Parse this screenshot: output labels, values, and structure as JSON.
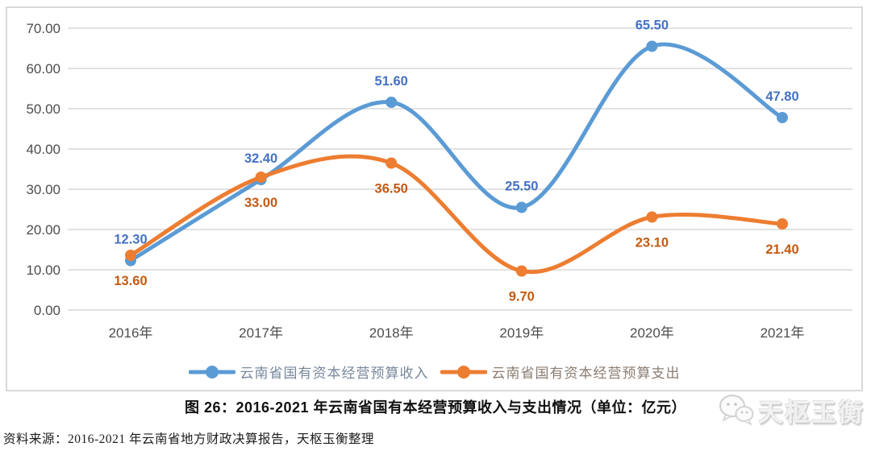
{
  "chart_data": {
    "type": "line",
    "categories": [
      "2016年",
      "2017年",
      "2018年",
      "2019年",
      "2020年",
      "2021年"
    ],
    "series": [
      {
        "name": "云南省国有资本经营预算收入",
        "values": [
          12.3,
          32.4,
          51.6,
          25.5,
          65.5,
          47.8
        ],
        "color": "#5B9BD5",
        "label_color": "#4472C4",
        "legend_text_color": "#77879b",
        "label_position": "above"
      },
      {
        "name": "云南省国有资本经营预算支出",
        "values": [
          13.6,
          33.0,
          36.5,
          9.7,
          23.1,
          21.4
        ],
        "color": "#ED7D31",
        "label_color": "#C55A11",
        "legend_text_color": "#8a7d72",
        "label_position": "below"
      }
    ],
    "ylim": [
      0,
      70
    ],
    "ytick_step": 10,
    "ytick_labels": [
      "0.00",
      "10.00",
      "20.00",
      "30.00",
      "40.00",
      "50.00",
      "60.00",
      "70.00"
    ],
    "value_decimals": 2,
    "grid": true,
    "legend_position": "bottom",
    "axis_text_color": "#4d4d4d",
    "gridline_color": "#d9d9d9"
  },
  "title": "图 26：2016-2021 年云南省国有本经营预算收入与支出情况（单位：亿元）",
  "source_note": "资料来源：2016-2021 年云南省地方财政决算报告，天枢玉衡整理",
  "watermark": {
    "text": "天枢玉衡",
    "icon": "wechat-icon"
  }
}
